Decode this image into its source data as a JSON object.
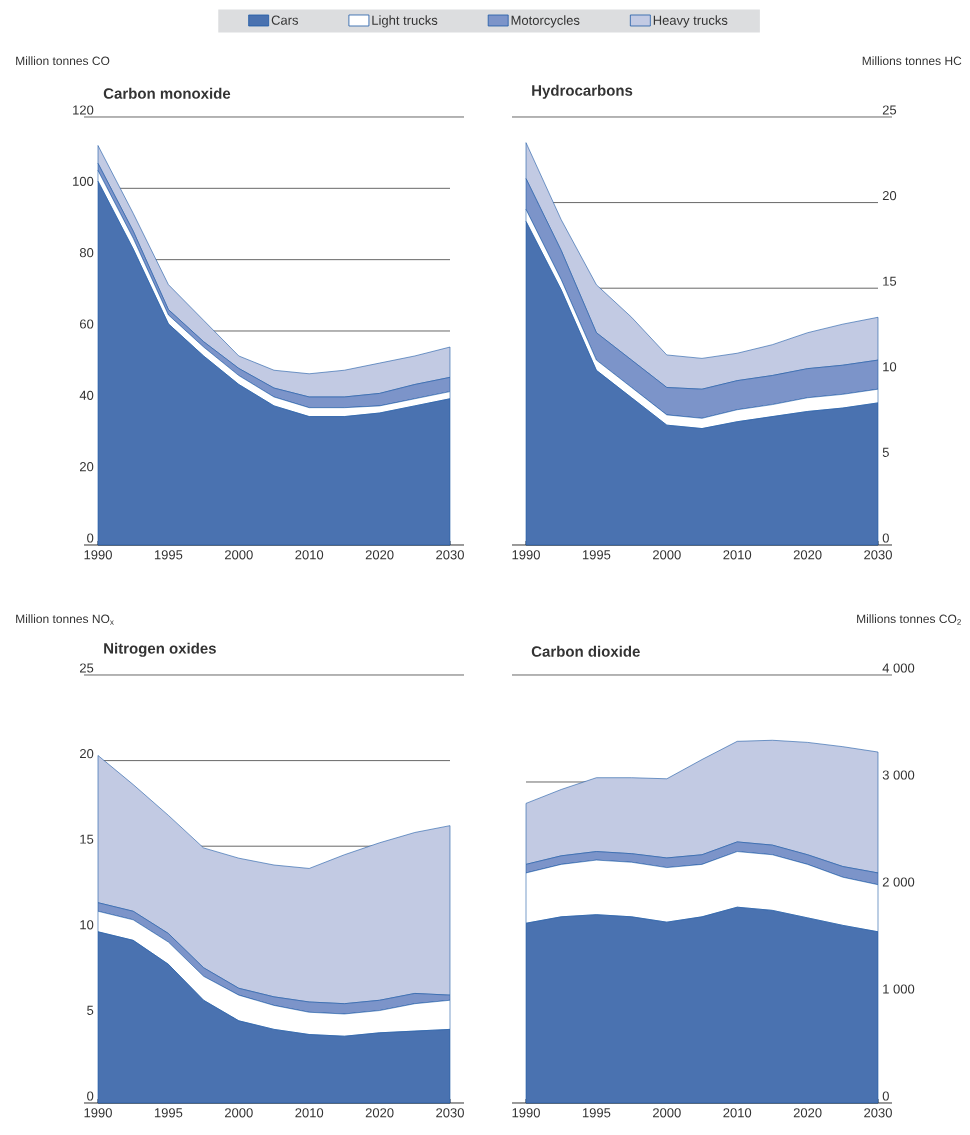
{
  "chart_data": [
    {
      "type": "area",
      "stacked": true,
      "title": "Carbon monoxide",
      "ylabel": "Million tonnes CO",
      "legend": "top",
      "grid": "y",
      "categories": [
        "1990",
        null,
        "1995",
        null,
        "2000",
        null,
        "2010",
        null,
        "2020",
        null,
        "2030"
      ],
      "ylim": [
        0,
        120
      ],
      "yticks": [
        0,
        20,
        40,
        60,
        80,
        100,
        120
      ],
      "series": [
        {
          "name": "Cars",
          "color": "#4a72b0",
          "values": [
            102,
            83,
            62,
            53,
            45,
            39,
            36,
            36,
            37,
            39,
            41
          ]
        },
        {
          "name": "Light trucks",
          "color": "#ffffff",
          "values": [
            3,
            3,
            2.5,
            2.5,
            2.5,
            2.5,
            2.5,
            2.5,
            2,
            2,
            2
          ]
        },
        {
          "name": "Motorcycles",
          "color": "#7c94c9",
          "values": [
            2,
            2,
            1.5,
            1.5,
            2,
            2.5,
            3,
            3,
            3.5,
            4,
            4
          ]
        },
        {
          "name": "Heavy trucks",
          "color": "#c2cae3",
          "values": [
            5,
            5,
            7,
            6,
            3.5,
            5,
            6.5,
            7.5,
            8.5,
            8,
            8.5
          ]
        }
      ]
    },
    {
      "type": "area",
      "stacked": true,
      "title": "Hydrocarbons",
      "ylabel": "Millions tonnes HC",
      "grid": "y",
      "categories": [
        "1990",
        null,
        "1995",
        null,
        "2000",
        null,
        "2010",
        null,
        "2020",
        null,
        "2030"
      ],
      "ylim": [
        0,
        25
      ],
      "yticks": [
        0,
        5,
        10,
        15,
        20,
        25
      ],
      "series": [
        {
          "color": "#4a72b0",
          "values": [
            18.9,
            14.9,
            10.2,
            8.6,
            7.0,
            6.8,
            7.2,
            7.5,
            7.8,
            8.0,
            8.3
          ]
        },
        {
          "color": "#ffffff",
          "values": [
            0.7,
            0.6,
            0.6,
            0.6,
            0.6,
            0.6,
            0.7,
            0.7,
            0.8,
            0.8,
            0.8
          ]
        },
        {
          "color": "#7c94c9",
          "values": [
            1.8,
            1.7,
            1.6,
            1.6,
            1.6,
            1.7,
            1.7,
            1.7,
            1.7,
            1.7,
            1.7
          ]
        },
        {
          "color": "#c2cae3",
          "values": [
            2.1,
            1.8,
            2.8,
            2.5,
            1.9,
            1.8,
            1.6,
            1.8,
            2.1,
            2.4,
            2.5
          ]
        }
      ]
    },
    {
      "type": "area",
      "stacked": true,
      "title": "Nitrogen oxides",
      "ylabel": "Million tonnes NO$_{x}$",
      "grid": "y",
      "categories": [
        "1990",
        null,
        "1995",
        null,
        "2000",
        null,
        "2010",
        null,
        "2020",
        null,
        "2030"
      ],
      "ylim": [
        0,
        25
      ],
      "yticks": [
        0,
        5,
        10,
        15,
        20,
        25
      ],
      "series": [
        {
          "color": "#4a72b0",
          "values": [
            10.0,
            9.5,
            8.1,
            6.0,
            4.8,
            4.3,
            4.0,
            3.9,
            4.1,
            4.2,
            4.3
          ]
        },
        {
          "color": "#ffffff",
          "values": [
            1.2,
            1.2,
            1.3,
            1.4,
            1.5,
            1.4,
            1.3,
            1.3,
            1.3,
            1.6,
            1.7
          ]
        },
        {
          "color": "#7c94c9",
          "values": [
            0.5,
            0.5,
            0.5,
            0.5,
            0.4,
            0.5,
            0.6,
            0.6,
            0.6,
            0.6,
            0.3
          ]
        },
        {
          "color": "#c2cae3",
          "values": [
            8.6,
            7.4,
            6.9,
            7.0,
            7.6,
            7.7,
            7.8,
            8.7,
            9.2,
            9.4,
            9.9
          ]
        }
      ]
    },
    {
      "type": "area",
      "stacked": true,
      "title": "Carbon dioxide",
      "ylabel": "Millions tonnes CO$_{2}$",
      "grid": "y",
      "categories": [
        "1990",
        null,
        "1995",
        null,
        "2000",
        null,
        "2010",
        null,
        "2020",
        null,
        "2030"
      ],
      "ylim": [
        0,
        4000
      ],
      "yticks": [
        0,
        {
          "value": 1000,
          "label": "1 000"
        },
        {
          "value": 2000,
          "label": "2 000"
        },
        {
          "value": 3000,
          "label": "3 000"
        },
        {
          "value": 4000,
          "label": "4 000"
        }
      ],
      "series": [
        {
          "color": "#4a72b0",
          "values": [
            1680,
            1740,
            1760,
            1740,
            1690,
            1740,
            1830,
            1800,
            1730,
            1660,
            1600
          ]
        },
        {
          "color": "#ffffff",
          "values": [
            470,
            490,
            510,
            510,
            510,
            490,
            520,
            520,
            500,
            450,
            440
          ]
        },
        {
          "color": "#7c94c9",
          "values": [
            80,
            80,
            80,
            80,
            90,
            90,
            90,
            90,
            90,
            100,
            110
          ]
        },
        {
          "color": "#c2cae3",
          "values": [
            570,
            620,
            690,
            710,
            740,
            890,
            940,
            980,
            1050,
            1120,
            1130
          ]
        }
      ]
    }
  ]
}
